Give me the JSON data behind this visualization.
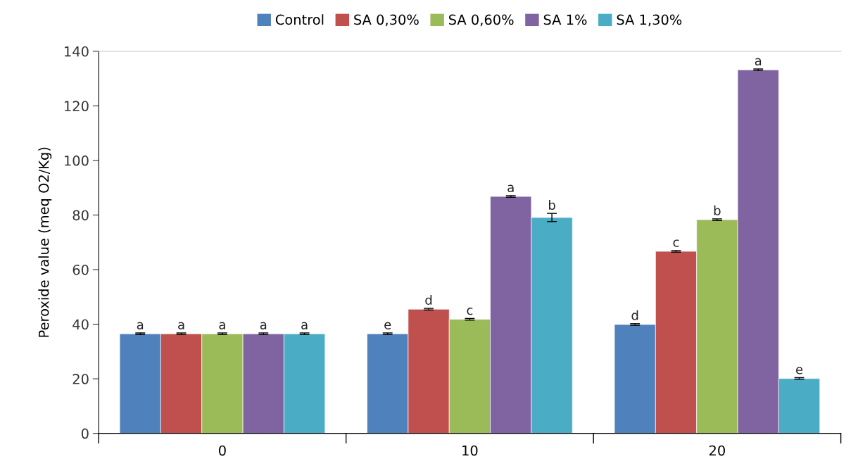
{
  "chart_data": {
    "type": "bar",
    "ylabel": "Peroxide value (meq O2/Kg)",
    "categories": [
      "0",
      "10",
      "20"
    ],
    "series": [
      {
        "name": "Control",
        "color": "#4f81bd",
        "values": [
          36.5,
          36.5,
          39.9
        ],
        "errors": [
          0.3,
          0.3,
          0.3
        ],
        "value_labels": [
          "a",
          "e",
          "d"
        ]
      },
      {
        "name": "SA 0,30%",
        "color": "#c0504d",
        "values": [
          36.5,
          45.5,
          66.7
        ],
        "errors": [
          0.3,
          0.3,
          0.3
        ],
        "value_labels": [
          "a",
          "d",
          "c"
        ]
      },
      {
        "name": "SA 0,60%",
        "color": "#9bbb59",
        "values": [
          36.5,
          41.8,
          78.3
        ],
        "errors": [
          0.3,
          0.3,
          0.3
        ],
        "value_labels": [
          "a",
          "c",
          "b"
        ]
      },
      {
        "name": "SA 1%",
        "color": "#8064a2",
        "values": [
          36.5,
          86.8,
          133.2
        ],
        "errors": [
          0.3,
          0.3,
          0.3
        ],
        "value_labels": [
          "a",
          "a",
          "a"
        ]
      },
      {
        "name": "SA 1,30%",
        "color": "#4bacc6",
        "values": [
          36.5,
          79.1,
          20.1
        ],
        "errors": [
          0.3,
          1.5,
          0.3
        ],
        "value_labels": [
          "a",
          "b",
          "e"
        ]
      }
    ],
    "ylim": [
      0,
      140
    ],
    "yticks": [
      0,
      20,
      40,
      60,
      80,
      100,
      120,
      140
    ],
    "grid": false,
    "legend": "top"
  }
}
